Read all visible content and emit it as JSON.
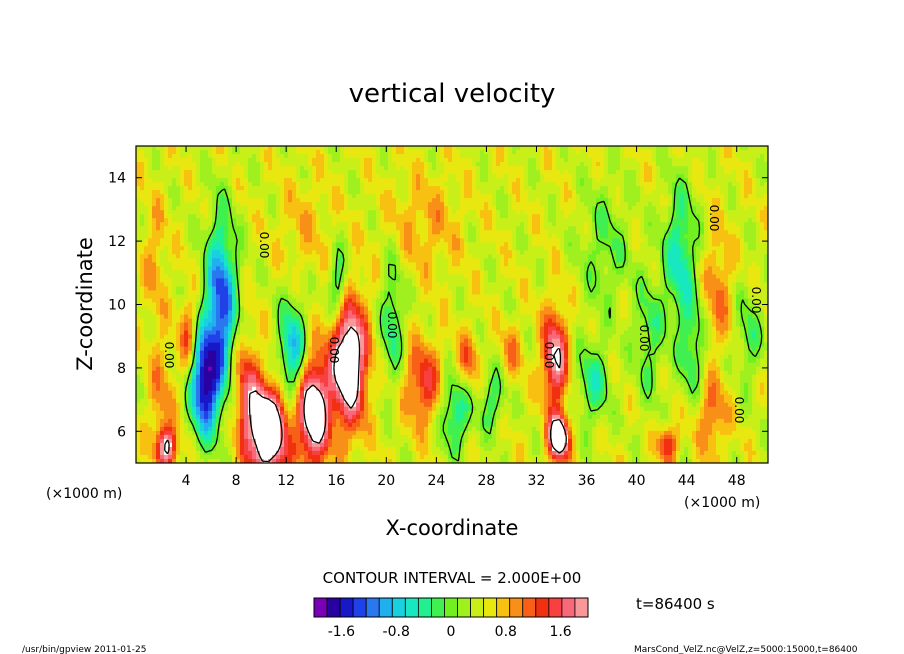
{
  "chart_data": {
    "type": "heatmap",
    "title": "vertical velocity",
    "xlabel": "X-coordinate",
    "ylabel": "Z-coordinate",
    "x_unit_label": "(×1000 m)",
    "y_unit_label": "(×1000 m)",
    "x_range": [
      0,
      50.5
    ],
    "y_range": [
      5,
      15
    ],
    "x_ticks": [
      4,
      8,
      12,
      16,
      20,
      24,
      28,
      32,
      36,
      40,
      44,
      48
    ],
    "y_ticks": [
      6,
      8,
      10,
      12,
      14
    ],
    "contour_interval_text": "CONTOUR INTERVAL = 2.000E+00",
    "contour_labels": [
      "0.00",
      "0.00",
      "0.00",
      "0.00",
      "0.00",
      "0.00",
      "0.00",
      "0.00",
      "0.00",
      "0.00"
    ],
    "time_text": "t=86400 s",
    "colorbar": {
      "ticks": [
        "-1.6",
        "-0.8",
        "0",
        "0.8",
        "1.6"
      ],
      "range": [
        -2.0,
        2.0
      ],
      "colors": [
        "#7a00b8",
        "#2a00a0",
        "#1818c8",
        "#2040e8",
        "#2a78f0",
        "#20b0f0",
        "#18d0e0",
        "#18e8c0",
        "#20f090",
        "#40f050",
        "#70f020",
        "#a0f020",
        "#c8f018",
        "#e8e810",
        "#f8c010",
        "#f89018",
        "#f86018",
        "#f03010",
        "#f84040",
        "#f86878",
        "#f89898"
      ]
    },
    "features": [
      {
        "x": 6.8,
        "z": 10.0,
        "w": -1.8,
        "sx": 1.2,
        "sz": 2.6
      },
      {
        "x": 5.5,
        "z": 7.5,
        "w": -2.2,
        "sx": 1.1,
        "sz": 1.6
      },
      {
        "x": 4.2,
        "z": 9.0,
        "w": 0.8,
        "sx": 0.7,
        "sz": 1.2
      },
      {
        "x": 8.8,
        "z": 7.5,
        "w": 0.9,
        "sx": 1.0,
        "sz": 1.5
      },
      {
        "x": 10.5,
        "z": 6.0,
        "w": 2.6,
        "sx": 1.6,
        "sz": 1.4
      },
      {
        "x": 12.5,
        "z": 8.5,
        "w": -1.3,
        "sx": 1.1,
        "sz": 1.6
      },
      {
        "x": 14.2,
        "z": 6.6,
        "w": 2.3,
        "sx": 1.2,
        "sz": 1.6
      },
      {
        "x": 17.0,
        "z": 8.2,
        "w": 2.3,
        "sx": 1.4,
        "sz": 2.0
      },
      {
        "x": 16.2,
        "z": 10.5,
        "w": -1.0,
        "sx": 0.8,
        "sz": 1.2
      },
      {
        "x": 20.5,
        "z": 9.5,
        "w": -0.8,
        "sx": 0.9,
        "sz": 2.0
      },
      {
        "x": 23.0,
        "z": 7.5,
        "w": 1.0,
        "sx": 1.5,
        "sz": 1.3
      },
      {
        "x": 25.5,
        "z": 6.6,
        "w": -1.0,
        "sx": 1.2,
        "sz": 1.2
      },
      {
        "x": 26.5,
        "z": 8.2,
        "w": 0.7,
        "sx": 0.9,
        "sz": 0.9
      },
      {
        "x": 28.5,
        "z": 7.0,
        "w": -0.7,
        "sx": 1.0,
        "sz": 1.0
      },
      {
        "x": 30.0,
        "z": 8.5,
        "w": 0.5,
        "sx": 0.9,
        "sz": 0.9
      },
      {
        "x": 33.5,
        "z": 8.3,
        "w": 1.6,
        "sx": 1.0,
        "sz": 1.5
      },
      {
        "x": 33.8,
        "z": 5.8,
        "w": 2.5,
        "sx": 0.8,
        "sz": 0.7
      },
      {
        "x": 36.5,
        "z": 7.5,
        "w": -0.8,
        "sx": 1.3,
        "sz": 1.3
      },
      {
        "x": 37.5,
        "z": 11.8,
        "w": -0.5,
        "sx": 2.0,
        "sz": 2.0
      },
      {
        "x": 41.0,
        "z": 9.0,
        "w": -0.6,
        "sx": 1.2,
        "sz": 2.0
      },
      {
        "x": 43.5,
        "z": 11.5,
        "w": -1.0,
        "sx": 1.3,
        "sz": 2.2
      },
      {
        "x": 44.5,
        "z": 8.5,
        "w": -0.7,
        "sx": 1.0,
        "sz": 1.5
      },
      {
        "x": 46.5,
        "z": 10.5,
        "w": 0.6,
        "sx": 1.1,
        "sz": 1.8
      },
      {
        "x": 46.0,
        "z": 6.5,
        "w": 0.7,
        "sx": 1.2,
        "sz": 1.2
      },
      {
        "x": 42.5,
        "z": 5.6,
        "w": 1.0,
        "sx": 0.8,
        "sz": 0.6
      },
      {
        "x": 49.0,
        "z": 9.0,
        "w": -0.6,
        "sx": 1.0,
        "sz": 1.5
      },
      {
        "x": 2.0,
        "z": 7.0,
        "w": 0.5,
        "sx": 1.0,
        "sz": 2.0
      },
      {
        "x": 1.5,
        "z": 11.5,
        "w": 0.4,
        "sx": 1.0,
        "sz": 2.0
      },
      {
        "x": 2.5,
        "z": 5.5,
        "w": 1.6,
        "sx": 0.8,
        "sz": 0.6
      },
      {
        "x": 23.0,
        "z": 12.5,
        "w": 0.4,
        "sx": 3.0,
        "sz": 1.5
      },
      {
        "x": 13.5,
        "z": 12.5,
        "w": 0.3,
        "sx": 2.0,
        "sz": 1.5
      }
    ]
  },
  "footer": {
    "left": "/usr/bin/gpview   2011-01-25",
    "right": "MarsCond_VelZ.nc@VelZ,z=5000:15000,t=86400"
  }
}
